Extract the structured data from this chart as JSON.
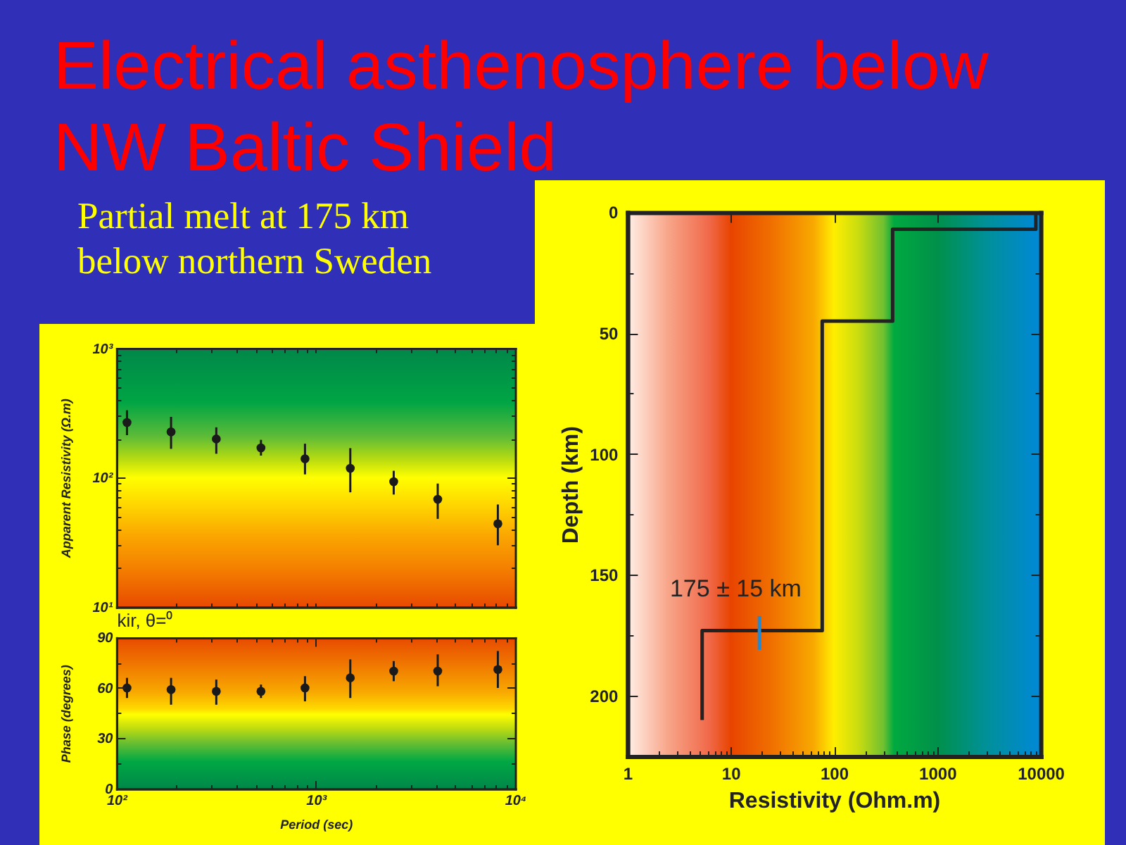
{
  "chart_data": [
    {
      "type": "scatter",
      "title": "Electrical asthenosphere below NW Baltic Shield",
      "subtitle": "Partial melt at 175 km below northern Sweden",
      "ylabel": "Apparent Resistivity (Ω.m)",
      "x": [
        113,
        188,
        317,
        531,
        883,
        1490,
        2460,
        4090,
        8190
      ],
      "series": [
        {
          "color": "#1a1a1a",
          "values": [
            267,
            226,
            199,
            170,
            140,
            118,
            93,
            68,
            44
          ],
          "errors": [
            [
              213,
              332
            ],
            [
              167,
              295
            ],
            [
              153,
              245
            ],
            [
              148,
              196
            ],
            [
              106,
              183
            ],
            [
              77,
              169
            ],
            [
              74,
              113
            ],
            [
              48,
              90
            ],
            [
              30,
              62
            ]
          ]
        }
      ],
      "log": "xy",
      "xlim": [
        100,
        10000
      ],
      "ylim": [
        10,
        1000
      ],
      "xticks": [
        {
          "value": 100,
          "label": null
        },
        {
          "value": 200,
          "label": null
        },
        {
          "value": 300,
          "label": null
        },
        {
          "value": 400,
          "label": null
        },
        {
          "value": 500,
          "label": null
        },
        {
          "value": 600,
          "label": null
        },
        {
          "value": 700,
          "label": null
        },
        {
          "value": 800,
          "label": null
        },
        {
          "value": 900,
          "label": null
        },
        {
          "value": 1000,
          "label": null
        },
        {
          "value": 2000,
          "label": null
        },
        {
          "value": 3000,
          "label": null
        },
        {
          "value": 4000,
          "label": null
        },
        {
          "value": 5000,
          "label": null
        },
        {
          "value": 6000,
          "label": null
        },
        {
          "value": 7000,
          "label": null
        },
        {
          "value": 8000,
          "label": null
        },
        {
          "value": 9000,
          "label": null
        },
        {
          "value": 10000,
          "label": null
        }
      ],
      "yticks": [
        {
          "value": 10,
          "label": "10¹"
        },
        {
          "value": 20,
          "label": null
        },
        {
          "value": 30,
          "label": null
        },
        {
          "value": 40,
          "label": null
        },
        {
          "value": 50,
          "label": null
        },
        {
          "value": 60,
          "label": null
        },
        {
          "value": 70,
          "label": null
        },
        {
          "value": 80,
          "label": null
        },
        {
          "value": 90,
          "label": null
        },
        {
          "value": 100,
          "label": "10²"
        },
        {
          "value": 200,
          "label": null
        },
        {
          "value": 300,
          "label": null
        },
        {
          "value": 400,
          "label": null
        },
        {
          "value": 500,
          "label": null
        },
        {
          "value": 600,
          "label": null
        },
        {
          "value": 700,
          "label": null
        },
        {
          "value": 800,
          "label": null
        },
        {
          "value": 900,
          "label": null
        },
        {
          "value": 1000,
          "label": "10³"
        }
      ],
      "tick_labels": "y",
      "marker": "circle"
    },
    {
      "type": "scatter",
      "xlabel": "Period (sec)",
      "ylabel": "Phase (degrees)",
      "annotations": [
        "kir, θ=⁰"
      ],
      "x": [
        113,
        188,
        317,
        531,
        883,
        1490,
        2460,
        4090,
        8190
      ],
      "series": [
        {
          "color": "#1a1a1a",
          "values": [
            60,
            59,
            58,
            58,
            60,
            66,
            70,
            70,
            71
          ],
          "errors": [
            [
              54,
              66
            ],
            [
              50,
              66
            ],
            [
              50,
              65
            ],
            [
              54,
              62
            ],
            [
              52,
              67
            ],
            [
              54,
              77
            ],
            [
              64,
              76
            ],
            [
              61,
              80
            ],
            [
              60,
              82
            ]
          ]
        }
      ],
      "log": "x",
      "xlim": [
        100,
        10000
      ],
      "ylim": [
        0,
        90
      ],
      "xticks": [
        {
          "value": 100,
          "label": "10²"
        },
        {
          "value": 200,
          "label": null
        },
        {
          "value": 300,
          "label": null
        },
        {
          "value": 400,
          "label": null
        },
        {
          "value": 500,
          "label": null
        },
        {
          "value": 600,
          "label": null
        },
        {
          "value": 700,
          "label": null
        },
        {
          "value": 800,
          "label": null
        },
        {
          "value": 900,
          "label": null
        },
        {
          "value": 1000,
          "label": "10³"
        },
        {
          "value": 2000,
          "label": null
        },
        {
          "value": 3000,
          "label": null
        },
        {
          "value": 4000,
          "label": null
        },
        {
          "value": 5000,
          "label": null
        },
        {
          "value": 6000,
          "label": null
        },
        {
          "value": 7000,
          "label": null
        },
        {
          "value": 8000,
          "label": null
        },
        {
          "value": 9000,
          "label": null
        },
        {
          "value": 10000,
          "label": "10⁴"
        }
      ],
      "yticks": [
        0,
        {
          "value": 15,
          "label": null
        },
        30,
        {
          "value": 45,
          "label": null
        },
        60,
        {
          "value": 75,
          "label": null
        },
        90
      ],
      "marker": "circle"
    },
    {
      "type": "line",
      "xlabel": "Resistivity (Ohm.m)",
      "ylabel": "Depth (km)",
      "annotations": [
        "175 ± 15 km"
      ],
      "series": [
        {
          "color": "#222222",
          "x": [
            9000,
            9000,
            370,
            370,
            77,
            77,
            5.3,
            5.3
          ],
          "values": [
            0,
            7,
            7,
            45,
            45,
            173,
            173,
            210
          ]
        },
        {
          "color": "#1e8ad6",
          "x": [
            19,
            19
          ],
          "values": [
            167,
            181
          ]
        }
      ],
      "log": "x",
      "xlim": [
        1,
        10000
      ],
      "ylim": [
        225,
        0
      ],
      "xticks": [
        1,
        {
          "value": 2,
          "label": null
        },
        {
          "value": 3,
          "label": null
        },
        {
          "value": 4,
          "label": null
        },
        {
          "value": 5,
          "label": null
        },
        {
          "value": 6,
          "label": null
        },
        {
          "value": 7,
          "label": null
        },
        {
          "value": 8,
          "label": null
        },
        {
          "value": 9,
          "label": null
        },
        10,
        {
          "value": 20,
          "label": null
        },
        {
          "value": 30,
          "label": null
        },
        {
          "value": 40,
          "label": null
        },
        {
          "value": 50,
          "label": null
        },
        {
          "value": 60,
          "label": null
        },
        {
          "value": 70,
          "label": null
        },
        {
          "value": 80,
          "label": null
        },
        {
          "value": 90,
          "label": null
        },
        100,
        {
          "value": 200,
          "label": null
        },
        {
          "value": 300,
          "label": null
        },
        {
          "value": 400,
          "label": null
        },
        {
          "value": 500,
          "label": null
        },
        {
          "value": 600,
          "label": null
        },
        {
          "value": 700,
          "label": null
        },
        {
          "value": 800,
          "label": null
        },
        {
          "value": 900,
          "label": null
        },
        1000,
        {
          "value": 2000,
          "label": null
        },
        {
          "value": 3000,
          "label": null
        },
        {
          "value": 4000,
          "label": null
        },
        {
          "value": 5000,
          "label": null
        },
        {
          "value": 6000,
          "label": null
        },
        {
          "value": 7000,
          "label": null
        },
        {
          "value": 8000,
          "label": null
        },
        {
          "value": 9000,
          "label": null
        },
        10000
      ],
      "yticks": [
        0,
        {
          "value": 25,
          "label": null
        },
        50,
        {
          "value": 75,
          "label": null
        },
        100,
        {
          "value": 125,
          "label": null
        },
        150,
        {
          "value": 175,
          "label": null
        },
        200
      ]
    }
  ]
}
